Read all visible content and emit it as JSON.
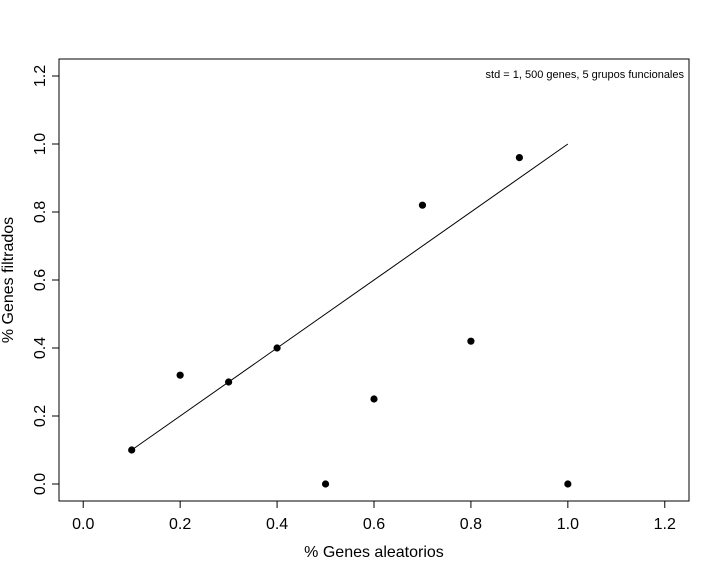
{
  "chart_data": {
    "type": "scatter",
    "annotation": "std = 1, 500 genes, 5 grupos funcionales",
    "xlabel": "% Genes aleatorios",
    "ylabel": "% Genes filtrados",
    "xlim": [
      -0.05,
      1.25
    ],
    "ylim": [
      -0.05,
      1.25
    ],
    "xticks": [
      "0.0",
      "0.2",
      "0.4",
      "0.6",
      "0.8",
      "1.0",
      "1.2"
    ],
    "yticks": [
      "0.0",
      "0.2",
      "0.4",
      "0.6",
      "0.8",
      "1.0",
      "1.2"
    ],
    "grid": false,
    "points": [
      {
        "x": 0.1,
        "y": 0.1
      },
      {
        "x": 0.2,
        "y": 0.32
      },
      {
        "x": 0.3,
        "y": 0.3
      },
      {
        "x": 0.4,
        "y": 0.4
      },
      {
        "x": 0.5,
        "y": 0.0
      },
      {
        "x": 0.6,
        "y": 0.25
      },
      {
        "x": 0.7,
        "y": 0.82
      },
      {
        "x": 0.8,
        "y": 0.42
      },
      {
        "x": 0.9,
        "y": 0.96
      },
      {
        "x": 1.0,
        "y": 0.0
      }
    ],
    "reference_line": {
      "x": [
        0.1,
        1.0
      ],
      "y": [
        0.1,
        1.0
      ]
    },
    "colors": {
      "points": "#000000",
      "line": "#000000",
      "frame": "#000000"
    }
  }
}
